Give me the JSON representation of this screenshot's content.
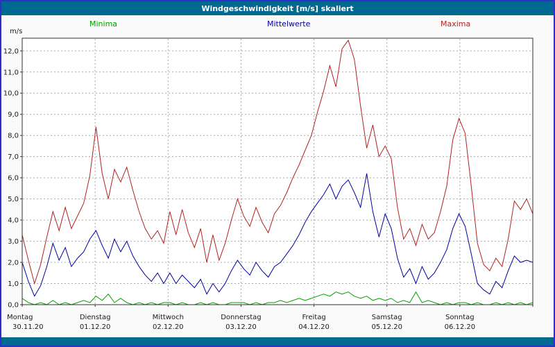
{
  "window": {
    "title": "Windgeschwindigkeit [m/s] skaliert"
  },
  "colors": {
    "titlebar": "#00698f",
    "border": "#2e2ec8",
    "plot_background": "#ffffff",
    "grid": "#a8a8a8",
    "frame": "#303030"
  },
  "legend": [
    {
      "label": "Minima",
      "color": "#00a000"
    },
    {
      "label": "Mittelwerte",
      "color": "#0000a0"
    },
    {
      "label": "Maxima",
      "color": "#b22222"
    }
  ],
  "chart_data": {
    "type": "line",
    "title": "Windgeschwindigkeit [m/s] skaliert",
    "ylabel": "m/s",
    "ylim": [
      0,
      12.6
    ],
    "y_tick_step": 1.0,
    "grid": "dashed",
    "legend_position": "top",
    "x_days": [
      {
        "name": "Montag",
        "date": "30.11.20"
      },
      {
        "name": "Dienstag",
        "date": "01.12.20"
      },
      {
        "name": "Mittwoch",
        "date": "02.12.20"
      },
      {
        "name": "Donnerstag",
        "date": "03.12.20"
      },
      {
        "name": "Freitag",
        "date": "04.12.20"
      },
      {
        "name": "Samstag",
        "date": "05.12.20"
      },
      {
        "name": "Sonntag",
        "date": "06.12.20"
      }
    ],
    "samples_per_day": 12,
    "series": [
      {
        "name": "Maxima",
        "color": "#b22222",
        "values": [
          3.3,
          2.1,
          1.0,
          1.9,
          3.2,
          4.4,
          3.5,
          4.6,
          3.6,
          4.2,
          4.8,
          6.1,
          8.4,
          6.2,
          5.0,
          6.4,
          5.8,
          6.5,
          5.4,
          4.4,
          3.6,
          3.1,
          3.5,
          2.9,
          4.4,
          3.3,
          4.5,
          3.4,
          2.7,
          3.6,
          2.0,
          3.3,
          2.1,
          2.9,
          4.0,
          5.0,
          4.2,
          3.7,
          4.6,
          3.9,
          3.4,
          4.3,
          4.7,
          5.3,
          6.0,
          6.6,
          7.3,
          8.0,
          9.1,
          10.1,
          11.3,
          10.3,
          12.1,
          12.5,
          11.6,
          9.4,
          7.4,
          8.5,
          7.0,
          7.5,
          6.9,
          4.6,
          3.1,
          3.6,
          2.8,
          3.8,
          3.1,
          3.4,
          4.4,
          5.6,
          7.8,
          8.8,
          8.1,
          5.6,
          2.9,
          1.9,
          1.6,
          2.2,
          1.8,
          3.1,
          4.9,
          4.5,
          5.0,
          4.3
        ]
      },
      {
        "name": "Mittelwerte",
        "color": "#0000a0",
        "values": [
          2.0,
          1.1,
          0.4,
          0.9,
          1.8,
          2.9,
          2.1,
          2.7,
          1.8,
          2.2,
          2.5,
          3.1,
          3.5,
          2.8,
          2.2,
          3.1,
          2.5,
          3.0,
          2.3,
          1.8,
          1.4,
          1.1,
          1.5,
          1.0,
          1.5,
          1.0,
          1.4,
          1.1,
          0.8,
          1.2,
          0.5,
          1.0,
          0.6,
          1.0,
          1.6,
          2.1,
          1.7,
          1.4,
          2.0,
          1.6,
          1.3,
          1.8,
          2.0,
          2.4,
          2.8,
          3.3,
          3.9,
          4.4,
          4.8,
          5.2,
          5.7,
          5.0,
          5.6,
          5.9,
          5.3,
          4.6,
          6.2,
          4.4,
          3.2,
          4.3,
          3.6,
          2.2,
          1.3,
          1.7,
          1.0,
          1.8,
          1.2,
          1.5,
          2.0,
          2.6,
          3.6,
          4.3,
          3.7,
          2.4,
          1.0,
          0.7,
          0.5,
          1.1,
          0.8,
          1.6,
          2.3,
          2.0,
          2.1,
          2.0
        ]
      },
      {
        "name": "Minima",
        "color": "#00a000",
        "values": [
          0.3,
          0.1,
          0.0,
          0.1,
          0.0,
          0.2,
          0.0,
          0.1,
          0.0,
          0.1,
          0.2,
          0.1,
          0.4,
          0.2,
          0.5,
          0.1,
          0.3,
          0.1,
          0.0,
          0.1,
          0.0,
          0.1,
          0.0,
          0.1,
          0.1,
          0.0,
          0.1,
          0.0,
          0.0,
          0.1,
          0.0,
          0.1,
          0.0,
          0.0,
          0.1,
          0.1,
          0.1,
          0.0,
          0.1,
          0.0,
          0.1,
          0.1,
          0.2,
          0.1,
          0.2,
          0.3,
          0.2,
          0.3,
          0.4,
          0.5,
          0.4,
          0.6,
          0.5,
          0.6,
          0.4,
          0.3,
          0.4,
          0.2,
          0.3,
          0.2,
          0.3,
          0.1,
          0.2,
          0.1,
          0.6,
          0.1,
          0.2,
          0.1,
          0.0,
          0.1,
          0.0,
          0.1,
          0.1,
          0.0,
          0.1,
          0.0,
          0.0,
          0.1,
          0.0,
          0.1,
          0.0,
          0.1,
          0.0,
          0.1
        ]
      }
    ]
  }
}
